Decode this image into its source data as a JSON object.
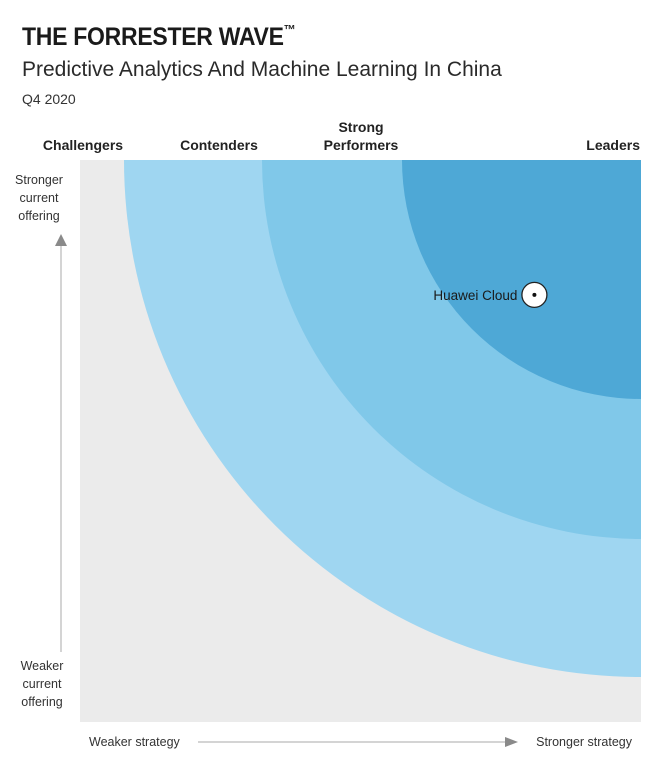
{
  "header": {
    "brand": "THE FORRESTER WAVE",
    "brand_mark": "™",
    "title": "Predictive Analytics And Machine Learning In China",
    "period": "Q4 2020"
  },
  "colors": {
    "background": "#ebebeb",
    "contenders_band": "#9fd6f1",
    "strong_performers_band": "#80c8e9",
    "leaders_band": "#4ea8d6",
    "axis": "#9a9a9a",
    "marker_stroke": "#222222"
  },
  "chart_data": {
    "type": "scatter",
    "x_axis": {
      "low_label": "Weaker strategy",
      "high_label": "Stronger strategy",
      "range": [
        0,
        1
      ]
    },
    "y_axis": {
      "low_label_lines": [
        "Weaker",
        "current",
        "offering"
      ],
      "high_label_lines": [
        "Stronger",
        "current",
        "offering"
      ],
      "range": [
        0,
        1
      ]
    },
    "segments": [
      {
        "name_lines": [
          "Challengers"
        ]
      },
      {
        "name_lines": [
          "Contenders"
        ]
      },
      {
        "name_lines": [
          "Strong",
          "Performers"
        ]
      },
      {
        "name_lines": [
          "Leaders"
        ]
      }
    ],
    "points": [
      {
        "label": "Huawei Cloud",
        "x": 0.81,
        "y": 0.76
      }
    ],
    "grid": false
  }
}
